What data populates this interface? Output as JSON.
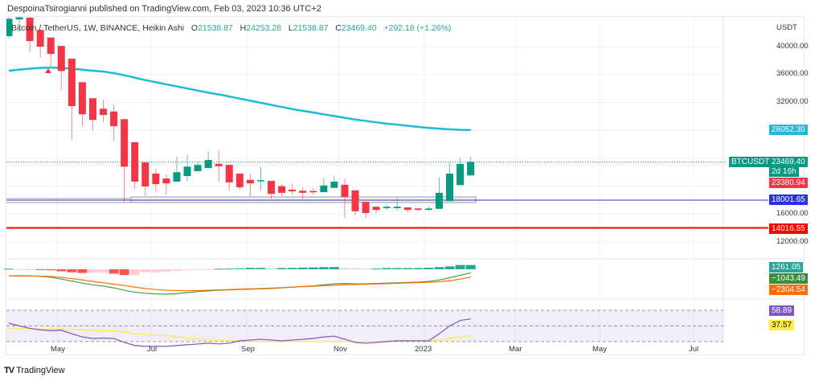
{
  "header": {
    "publisher": "DespoinaTsirogianni published on TradingView.com, Feb 03, 2023 10:36 UTC+2"
  },
  "legend": {
    "symbol": "Bitcoin / TetherUS, 1W, BINANCE, Heikin Ashi",
    "o_label": "O",
    "o": "21538.87",
    "h_label": "H",
    "h": "24253.28",
    "l_label": "L",
    "l": "21538.87",
    "c_label": "C",
    "c": "23469.40",
    "change": "+292.18 (+1.26%)"
  },
  "price_axis": {
    "currency": "USDT",
    "ticks": [
      "40000.00",
      "36000.00",
      "32000.00",
      "16000.00",
      "12000.00"
    ]
  },
  "labels": {
    "symbol_tag": "BTCUSDT",
    "last_price": "23469.40",
    "countdown": "2d 16h",
    "ma_value": "28052.30",
    "ha_close": "23380.94",
    "blue_line": "18001.65",
    "red_line": "14016.55",
    "macd_hist": "1261.05",
    "macd": "−1043.49",
    "signal": "−2304.54",
    "rsi": "58.89",
    "rsi_ma": "37.57"
  },
  "time_axis": [
    "May",
    "Jul",
    "Sep",
    "Nov",
    "2023",
    "Mar",
    "May",
    "Jul"
  ],
  "branding": {
    "name": "TradingView"
  },
  "colors": {
    "up": "#089981",
    "down": "#f23645",
    "ma": "#1fbad6",
    "blue": "#2932e1",
    "red": "#ff0000",
    "macd": "#43a047",
    "signal": "#ff6d00",
    "rsi": "#7e57c2",
    "rsi_ma": "#ffeb3b"
  },
  "chart_data": {
    "type": "candlestick",
    "title": "Bitcoin / TetherUS, 1W, BINANCE, Heikin Ashi",
    "ylim": [
      10000,
      46000
    ],
    "ohlc": [
      [
        41500,
        44300,
        41200,
        44000
      ],
      [
        43900,
        44300,
        42000,
        44200
      ],
      [
        44150,
        44300,
        39100,
        40800
      ],
      [
        42400,
        42400,
        38400,
        40000
      ],
      [
        41300,
        41300,
        37200,
        38960
      ],
      [
        40100,
        40100,
        33660,
        36500
      ],
      [
        38270,
        38270,
        26640,
        31470
      ],
      [
        34900,
        34900,
        28600,
        30300
      ],
      [
        32600,
        32600,
        28000,
        29500
      ],
      [
        31100,
        32400,
        29200,
        30200
      ],
      [
        30700,
        31700,
        26500,
        28600
      ],
      [
        29600,
        29600,
        17650,
        22800
      ],
      [
        26300,
        26300,
        19600,
        20650
      ],
      [
        23400,
        23400,
        18600,
        19950
      ],
      [
        21800,
        22500,
        19150,
        20300
      ],
      [
        21100,
        21700,
        18800,
        20400
      ],
      [
        20650,
        24200,
        20600,
        22000
      ],
      [
        21450,
        24550,
        20650,
        22800
      ],
      [
        22150,
        23500,
        22150,
        23050
      ],
      [
        22600,
        25000,
        22600,
        23750
      ],
      [
        23200,
        25100,
        20650,
        22850
      ],
      [
        23050,
        23050,
        19400,
        20550
      ],
      [
        21800,
        21800,
        19500,
        19850
      ],
      [
        20900,
        21800,
        18500,
        20400
      ],
      [
        20750,
        22800,
        19300,
        20850
      ],
      [
        20750,
        20750,
        18200,
        18900
      ],
      [
        20000,
        20300,
        18600,
        19050
      ],
      [
        19500,
        20400,
        18800,
        19250
      ],
      [
        19350,
        19850,
        18150,
        19050
      ],
      [
        19300,
        19700,
        18700,
        19150
      ],
      [
        19150,
        21150,
        19150,
        20100
      ],
      [
        19750,
        21500,
        19750,
        20650
      ],
      [
        20200,
        21100,
        15450,
        18450
      ],
      [
        19400,
        19400,
        15800,
        16400
      ],
      [
        17750,
        17750,
        15450,
        16150
      ],
      [
        17050,
        17200,
        16100,
        16600
      ],
      [
        16850,
        17400,
        16600,
        17050
      ],
      [
        16850,
        18350,
        16500,
        17050
      ],
      [
        16950,
        16950,
        16300,
        16600
      ],
      [
        16800,
        16800,
        16400,
        16600
      ],
      [
        16600,
        17100,
        16500,
        16800
      ],
      [
        16750,
        21250,
        16750,
        19050
      ],
      [
        17850,
        23400,
        17850,
        21800
      ],
      [
        20150,
        24000,
        20150,
        23200
      ],
      [
        21538.87,
        24253.28,
        21538.87,
        23469.4
      ]
    ],
    "ma": [
      36540,
      36700,
      36850,
      36950,
      37000,
      36950,
      36850,
      36700,
      36550,
      36430,
      36200,
      35900,
      35550,
      35200,
      34900,
      34590,
      34300,
      34000,
      33700,
      33400,
      33150,
      32860,
      32550,
      32250,
      31950,
      31650,
      31350,
      31050,
      30800,
      30550,
      30300,
      30050,
      29800,
      29550,
      29350,
      29150,
      28950,
      28820,
      28650,
      28500,
      28350,
      28250,
      28150,
      28080,
      28052.3
    ],
    "horizontal_lines": [
      {
        "value": 18001.65,
        "color": "blue"
      },
      {
        "value": 14016.55,
        "color": "red"
      }
    ],
    "macd_hist": [
      150,
      80,
      40,
      -150,
      -300,
      -600,
      -900,
      -1100,
      -1000,
      -1000,
      -1300,
      -1700,
      -1700,
      -900,
      -900,
      -700,
      -500,
      -300,
      -150,
      -50,
      150,
      200,
      250,
      400,
      400,
      300,
      350,
      400,
      500,
      550,
      650,
      650,
      350,
      300,
      200,
      200,
      350,
      350,
      350,
      350,
      450,
      650,
      850,
      1261.05,
      1261.05
    ],
    "macd": [
      -2000,
      -1900,
      -1950,
      -2100,
      -2400,
      -2900,
      -3500,
      -4100,
      -4600,
      -5000,
      -5500,
      -6200,
      -6800,
      -7100,
      -7300,
      -7350,
      -7200,
      -6900,
      -6600,
      -6400,
      -6200,
      -6100,
      -6000,
      -5900,
      -5800,
      -5700,
      -5500,
      -5300,
      -5100,
      -4900,
      -4600,
      -4300,
      -4200,
      -4300,
      -4300,
      -4200,
      -4100,
      -4000,
      -3900,
      -3800,
      -3600,
      -3200,
      -2500,
      -1800,
      -1043.49
    ],
    "signal": [
      -2000,
      -2000,
      -2000,
      -2050,
      -2150,
      -2400,
      -2750,
      -3150,
      -3600,
      -4000,
      -4400,
      -4800,
      -5300,
      -5700,
      -6000,
      -6200,
      -6300,
      -6350,
      -6300,
      -6200,
      -6100,
      -6000,
      -5900,
      -5800,
      -5700,
      -5600,
      -5450,
      -5300,
      -5150,
      -5000,
      -4850,
      -4700,
      -4600,
      -4500,
      -4450,
      -4350,
      -4250,
      -4150,
      -4050,
      -3950,
      -3850,
      -3700,
      -3400,
      -2900,
      -2304.54
    ],
    "rsi": [
      53.6,
      50,
      47,
      45,
      44,
      44.6,
      40,
      36,
      34,
      34.5,
      34,
      29,
      25,
      24,
      24,
      24,
      25,
      26,
      27,
      28,
      27,
      28,
      31,
      32,
      33,
      32,
      31,
      32,
      33,
      34,
      36,
      37,
      33,
      29,
      28,
      29,
      30,
      31,
      31,
      31,
      31,
      40,
      50,
      57,
      58.89
    ],
    "rsi_ma": [
      47,
      47,
      46.5,
      46,
      46,
      46,
      45.5,
      45,
      44.5,
      44,
      44,
      42,
      40,
      39,
      38,
      38,
      36,
      34,
      33,
      32,
      32,
      31,
      31,
      30.5,
      30,
      30,
      30,
      30,
      30,
      30,
      30,
      30,
      30,
      30,
      30,
      30,
      30.5,
      31,
      31,
      31,
      31,
      32,
      34,
      36,
      37.57
    ],
    "rsi_levels": [
      70,
      50,
      30
    ]
  }
}
